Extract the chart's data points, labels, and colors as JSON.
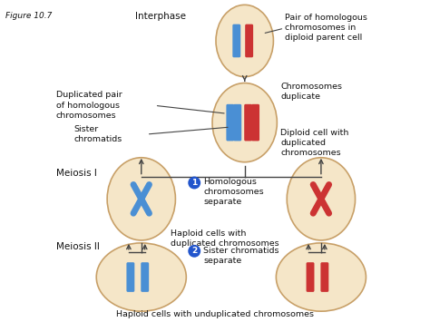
{
  "title": "Figure 10.7",
  "bg_color": "#ffffff",
  "cell_fill": "#f5e6c8",
  "cell_edge": "#c8a068",
  "blue_chrom": "#4a8fd4",
  "red_chrom": "#cc3333",
  "arrow_color": "#444444",
  "label_color": "#111111",
  "interphase_label": "Interphase",
  "meiosis1_label": "Meiosis I",
  "meiosis2_label": "Meiosis II",
  "ann1": "Pair of homologous\nchromosomes in\ndiploid parent cell",
  "ann2": "Chromosomes\nduplicate",
  "ann3": "Duplicated pair\nof homologous\nchromosomes",
  "ann4": "Sister\nchromatids",
  "ann5": "Diploid cell with\nduplicated\nchromosomes",
  "ann6": "Homologous\nchromosomes\nseparate",
  "ann7": "Haploid cells with\nduplicated chromosomes",
  "ann8": "Sister chromatids\nseparate",
  "ann9": "Haploid cells with unduplicated chromosomes",
  "circle1_label": "1",
  "circle2_label": "2",
  "highlight_circle_color": "#2255cc"
}
